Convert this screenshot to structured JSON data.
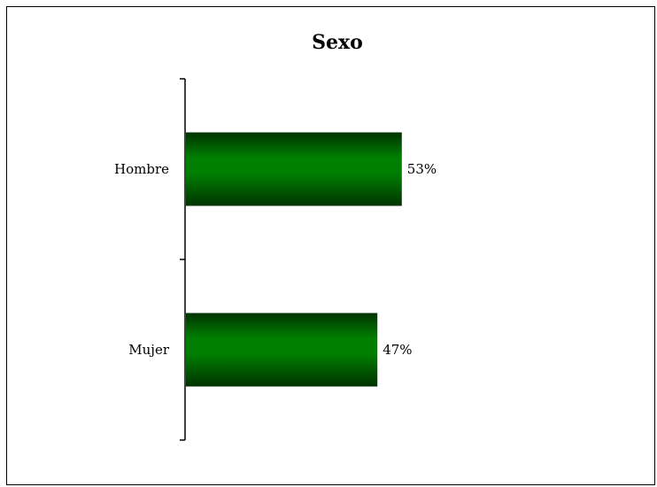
{
  "chart_data": {
    "type": "bar",
    "orientation": "horizontal",
    "title": "Sexo",
    "categories": [
      "Hombre",
      "Mujer"
    ],
    "values": [
      53,
      47
    ],
    "data_labels": [
      "53%",
      "47%"
    ],
    "xlabel": "",
    "ylabel": "",
    "xlim": [
      0,
      100
    ],
    "grid": false,
    "legend": "none",
    "bar_color": "#008000",
    "bar_shade_color": "#003300"
  }
}
